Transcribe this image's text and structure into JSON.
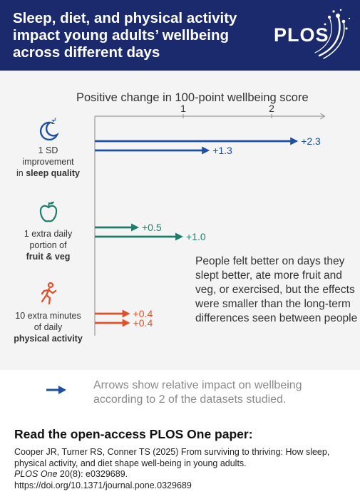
{
  "header": {
    "title": "Sleep, diet, and physical activity impact young adults’ wellbeing across different days",
    "logo_text": "PLOS"
  },
  "colors": {
    "header_bg": "#1a2a6c",
    "sleep": "#1f4fa3",
    "diet": "#1e7d6b",
    "activity": "#e0502a",
    "chart_bg": "#f4f4f4"
  },
  "chart_data": {
    "type": "bar",
    "title": "Positive change in 100-point wellbeing score",
    "xlim": [
      0,
      2.6
    ],
    "ticks": [
      1,
      2
    ],
    "categories": [
      {
        "icon": "moon-sleep-icon",
        "label_lines": [
          "1 SD",
          "improvement",
          "in"
        ],
        "label_bold": "sleep quality",
        "color": "#1f4fa3",
        "values": [
          2.3,
          1.3
        ],
        "labels": [
          "+2.3",
          "+1.3"
        ]
      },
      {
        "icon": "apple-icon",
        "label_lines": [
          "1 extra daily",
          "portion of"
        ],
        "label_bold": "fruit & veg",
        "color": "#1e7d6b",
        "values": [
          0.5,
          1.0
        ],
        "labels": [
          "+0.5",
          "+1.0"
        ]
      },
      {
        "icon": "running-person-icon",
        "label_lines": [
          "10 extra minutes",
          "of daily"
        ],
        "label_bold": "physical activity",
        "color": "#e0502a",
        "values": [
          0.4,
          0.4
        ],
        "labels": [
          "+0.4",
          "+0.4"
        ]
      }
    ]
  },
  "note": "People felt better on days they slept better, ate more fruit and veg, or exercised, but the effects were smaller than the long-term differences seen between people",
  "legend": {
    "text": "Arrows show relative impact on wellbeing according to 2 of the datasets studied."
  },
  "citation": {
    "cta": "Read the open-access PLOS One paper:",
    "line1": "Cooper JR, Turner RS, Conner TS (2025) From surviving to thriving: How sleep, physical activity, and diet shape well-being in young adults.",
    "journal": "PLOS One",
    "issue": " 20(8): e0329689.",
    "doi": "https://doi.org/10.1371/journal.pone.0329689"
  }
}
